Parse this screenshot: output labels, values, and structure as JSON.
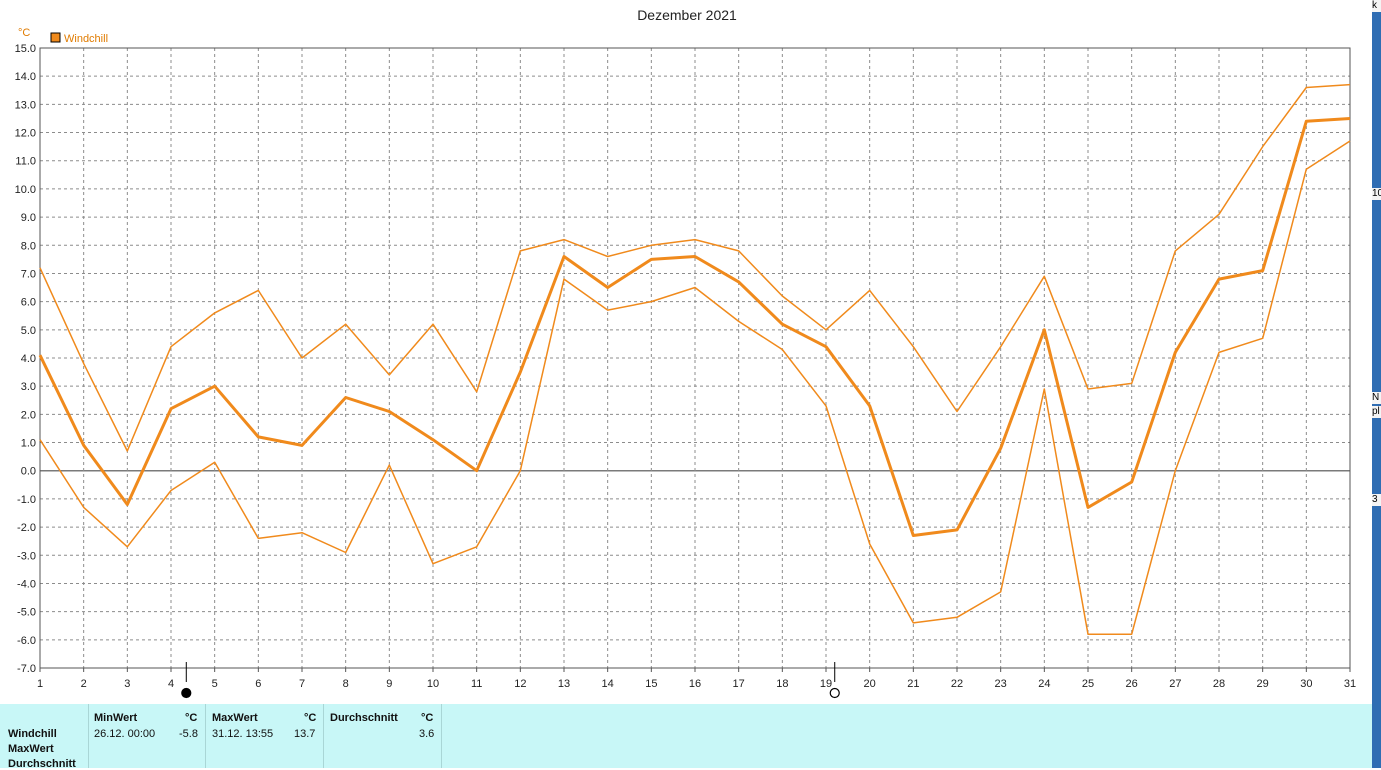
{
  "chart_data": {
    "type": "line",
    "title": "Dezember 2021",
    "unit_label": "°C",
    "legend": [
      {
        "name": "Windchill",
        "color": "#f08a1c"
      }
    ],
    "legend_placement": "top-left",
    "grid": true,
    "x": [
      1,
      2,
      3,
      4,
      5,
      6,
      7,
      8,
      9,
      10,
      11,
      12,
      13,
      14,
      15,
      16,
      17,
      18,
      19,
      20,
      21,
      22,
      23,
      24,
      25,
      26,
      27,
      28,
      29,
      30,
      31
    ],
    "xlim": [
      1,
      31
    ],
    "ylim": [
      -7.0,
      15.0
    ],
    "y_ticks": [
      "15.0",
      "14.0",
      "13.0",
      "12.0",
      "11.0",
      "10.0",
      "9.0",
      "8.0",
      "7.0",
      "6.0",
      "5.0",
      "4.0",
      "3.0",
      "2.0",
      "1.0",
      "0.0",
      "-1.0",
      "-2.0",
      "-3.0",
      "-4.0",
      "-5.0",
      "-6.0",
      "-7.0"
    ],
    "series": [
      {
        "name": "Windchill",
        "role": "max",
        "width": 1.5,
        "values": [
          7.2,
          3.8,
          0.7,
          4.4,
          5.6,
          6.4,
          4.0,
          5.2,
          3.4,
          5.2,
          2.8,
          7.8,
          8.2,
          7.6,
          8.0,
          8.2,
          7.8,
          6.2,
          5.0,
          6.4,
          4.4,
          2.1,
          4.4,
          6.9,
          2.9,
          3.1,
          7.8,
          9.1,
          11.5,
          13.6,
          13.7
        ]
      },
      {
        "name": "Windchill",
        "role": "avg",
        "width": 3,
        "values": [
          4.1,
          0.9,
          -1.2,
          2.2,
          3.0,
          1.2,
          0.9,
          2.6,
          2.1,
          1.1,
          0.0,
          3.5,
          7.6,
          6.5,
          7.5,
          7.6,
          6.7,
          5.2,
          4.4,
          2.3,
          -2.3,
          -2.1,
          0.8,
          5.0,
          -1.3,
          -0.4,
          4.2,
          6.8,
          7.1,
          12.4,
          12.5
        ]
      },
      {
        "name": "Windchill",
        "role": "min",
        "width": 1.5,
        "values": [
          1.1,
          -1.3,
          -2.7,
          -0.7,
          0.3,
          -2.4,
          -2.2,
          -2.9,
          0.2,
          -3.3,
          -2.7,
          0.0,
          6.8,
          5.7,
          6.0,
          6.5,
          5.3,
          4.3,
          2.3,
          -2.6,
          -5.4,
          -5.2,
          -4.3,
          2.9,
          -5.8,
          -5.8,
          0.0,
          4.2,
          4.7,
          10.7,
          11.7
        ]
      }
    ],
    "moon_markers": [
      {
        "x": 4.35,
        "phase": "new-moon"
      },
      {
        "x": 19.2,
        "phase": "full-moon"
      }
    ]
  },
  "stats": {
    "rows": [
      "Windchill",
      "MaxWert",
      "Durchschnitt"
    ],
    "min": {
      "header": "MinWert",
      "unit": "°C",
      "datetime": "26.12.  00:00",
      "value": "-5.8"
    },
    "max": {
      "header": "MaxWert",
      "unit": "°C",
      "datetime": "31.12.  13:55",
      "value": "13.7"
    },
    "avg": {
      "header": "Durchschnitt",
      "unit": "°C",
      "value": "3.6"
    }
  },
  "side_strip": [
    "k",
    "10",
    "N",
    "pl",
    "3"
  ]
}
